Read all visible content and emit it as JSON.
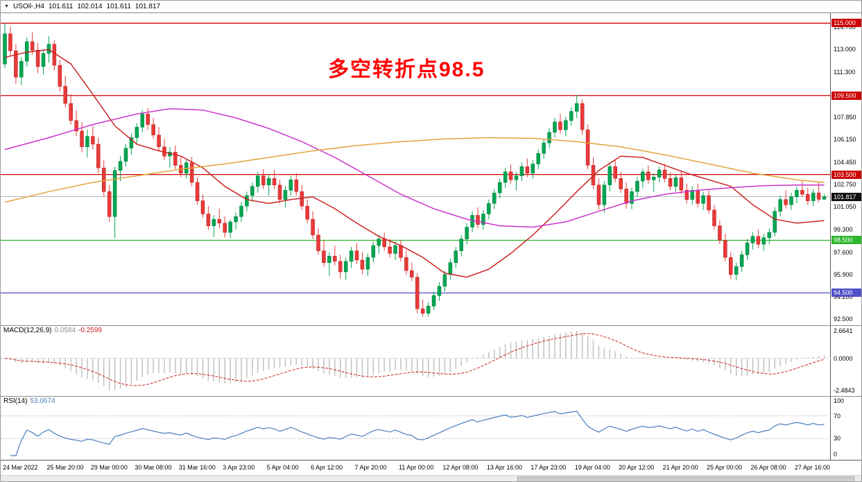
{
  "title_bar": {
    "dropdown_icon": "▼",
    "symbol_period": "USOil-,H4",
    "open": "101.611",
    "high": "102.014",
    "low": "101.611",
    "close": "101.817"
  },
  "annotation": {
    "text": "多空转折点98.5",
    "color": "#ff0000"
  },
  "colors": {
    "bull": "#00a651",
    "bear": "#e83a3a",
    "bull_border": "#007a3b",
    "bear_border": "#b71c1c",
    "macd_hist": "#bdbdbd",
    "macd_signal": "#cc2222",
    "rsi": "#4a7ebb",
    "grid": "#c8c8c8",
    "current_line": "#b9b9b9",
    "current_badge_bg": "#111111",
    "level_line": "#c0c0c0"
  },
  "chart_data": {
    "type": "candlestick",
    "symbol": "USOil-",
    "timeframe": "H4",
    "ylim": [
      92.2,
      115.55
    ],
    "current_price": 101.817,
    "y_ticks": [
      114.7,
      113.0,
      111.3,
      109.6,
      107.85,
      106.15,
      104.45,
      102.75,
      101.05,
      99.3,
      97.6,
      95.9,
      94.2,
      92.5
    ],
    "hlines": [
      {
        "price": 115.0,
        "color": "#cc0000"
      },
      {
        "price": 109.5,
        "color": "#cc0000"
      },
      {
        "price": 103.5,
        "color": "#cc0000"
      },
      {
        "price": 98.5,
        "color": "#2db52d"
      },
      {
        "price": 94.5,
        "color": "#5050c8"
      }
    ],
    "label_every": 8,
    "x_labels": [
      "24 Mar 2022",
      "25 Mar 20:00",
      "29 Mar 00:00",
      "30 Mar 08:00",
      "31 Mar 16:00",
      "3 Apr 23:00",
      "5 Apr 04:00",
      "6 Apr 12:00",
      "7 Apr 20:00",
      "11 Apr 00:00",
      "12 Apr 08:00",
      "13 Apr 16:00",
      "17 Apr 23:00",
      "19 Apr 04:00",
      "20 Apr 12:00",
      "21 Apr 20:00",
      "25 Apr 00:00",
      "26 Apr 08:00",
      "27 Apr 16:00"
    ],
    "candles": [
      [
        111.9,
        115.0,
        111.6,
        114.2
      ],
      [
        114.2,
        114.75,
        112.5,
        112.9
      ],
      [
        112.9,
        113.4,
        110.4,
        110.9
      ],
      [
        110.9,
        112.4,
        110.3,
        112.1
      ],
      [
        112.1,
        113.9,
        111.7,
        113.6
      ],
      [
        113.6,
        114.3,
        112.6,
        112.95
      ],
      [
        112.95,
        113.5,
        111.2,
        111.7
      ],
      [
        111.7,
        113.0,
        111.1,
        112.7
      ],
      [
        112.7,
        114.0,
        112.0,
        113.4
      ],
      [
        113.4,
        113.7,
        111.4,
        111.8
      ],
      [
        111.8,
        112.2,
        109.8,
        110.2
      ],
      [
        110.2,
        111.0,
        108.6,
        108.9
      ],
      [
        108.9,
        109.6,
        107.3,
        107.6
      ],
      [
        107.6,
        108.4,
        106.4,
        106.8
      ],
      [
        106.8,
        107.5,
        105.2,
        105.6
      ],
      [
        105.6,
        106.9,
        104.8,
        106.4
      ],
      [
        106.4,
        107.2,
        105.4,
        105.8
      ],
      [
        105.8,
        106.3,
        103.6,
        104.0
      ],
      [
        104.0,
        104.6,
        101.8,
        102.2
      ],
      [
        102.2,
        102.7,
        99.9,
        100.3
      ],
      [
        100.3,
        104.1,
        98.65,
        103.8
      ],
      [
        103.8,
        104.9,
        103.0,
        104.5
      ],
      [
        104.5,
        105.8,
        104.1,
        105.5
      ],
      [
        105.5,
        106.6,
        105.0,
        106.3
      ],
      [
        106.3,
        107.4,
        105.8,
        107.1
      ],
      [
        107.1,
        108.4,
        106.7,
        108.1
      ],
      [
        108.1,
        108.55,
        106.9,
        107.3
      ],
      [
        107.3,
        107.8,
        106.2,
        106.5
      ],
      [
        106.5,
        107.1,
        105.3,
        105.6
      ],
      [
        105.6,
        106.2,
        104.6,
        104.9
      ],
      [
        104.9,
        105.6,
        104.0,
        105.2
      ],
      [
        105.2,
        105.7,
        103.9,
        104.2
      ],
      [
        104.2,
        104.8,
        103.3,
        103.6
      ],
      [
        103.6,
        104.7,
        103.2,
        104.4
      ],
      [
        104.4,
        104.85,
        102.6,
        102.9
      ],
      [
        102.9,
        103.3,
        101.2,
        101.5
      ],
      [
        101.5,
        102.0,
        100.2,
        100.5
      ],
      [
        100.5,
        101.1,
        99.3,
        99.6
      ],
      [
        99.6,
        100.4,
        98.75,
        100.1
      ],
      [
        100.1,
        100.9,
        99.4,
        99.8
      ],
      [
        99.8,
        100.3,
        98.7,
        99.1
      ],
      [
        99.1,
        100.1,
        98.65,
        99.9
      ],
      [
        99.9,
        100.6,
        99.3,
        100.3
      ],
      [
        100.3,
        101.4,
        99.9,
        101.1
      ],
      [
        101.1,
        102.2,
        100.7,
        101.9
      ],
      [
        101.9,
        102.9,
        101.4,
        102.6
      ],
      [
        102.6,
        103.7,
        102.1,
        103.4
      ],
      [
        103.4,
        103.9,
        102.4,
        102.7
      ],
      [
        102.7,
        103.5,
        101.9,
        103.2
      ],
      [
        103.2,
        103.85,
        102.4,
        102.7
      ],
      [
        102.7,
        103.1,
        101.3,
        101.6
      ],
      [
        101.6,
        102.6,
        101.0,
        102.3
      ],
      [
        102.3,
        103.4,
        101.9,
        103.1
      ],
      [
        103.1,
        103.6,
        101.9,
        102.2
      ],
      [
        102.2,
        102.7,
        100.8,
        101.1
      ],
      [
        101.1,
        101.6,
        99.8,
        100.1
      ],
      [
        100.1,
        100.7,
        98.6,
        98.9
      ],
      [
        98.9,
        99.4,
        97.4,
        97.7
      ],
      [
        97.7,
        98.5,
        96.5,
        96.8
      ],
      [
        96.8,
        97.6,
        95.8,
        97.3
      ],
      [
        97.3,
        98.1,
        96.6,
        96.9
      ],
      [
        96.9,
        97.4,
        95.6,
        96.1
      ],
      [
        96.1,
        97.2,
        95.5,
        96.9
      ],
      [
        96.9,
        98.0,
        96.4,
        97.7
      ],
      [
        97.7,
        98.3,
        96.7,
        97.0
      ],
      [
        97.0,
        97.6,
        95.9,
        96.3
      ],
      [
        96.3,
        97.5,
        95.8,
        97.2
      ],
      [
        97.2,
        98.4,
        96.8,
        98.1
      ],
      [
        98.1,
        98.9,
        97.5,
        98.6
      ],
      [
        98.6,
        99.1,
        97.7,
        98.0
      ],
      [
        98.0,
        98.6,
        97.2,
        97.5
      ],
      [
        97.5,
        98.4,
        97.0,
        98.1
      ],
      [
        98.1,
        98.5,
        96.9,
        97.2
      ],
      [
        97.2,
        97.7,
        95.9,
        96.2
      ],
      [
        96.2,
        96.8,
        95.4,
        95.7
      ],
      [
        95.7,
        96.0,
        92.95,
        93.3
      ],
      [
        93.3,
        94.0,
        92.7,
        92.95
      ],
      [
        92.95,
        93.8,
        92.7,
        93.5
      ],
      [
        93.5,
        94.6,
        93.2,
        94.3
      ],
      [
        94.3,
        95.3,
        93.9,
        95.0
      ],
      [
        95.0,
        96.2,
        94.6,
        95.9
      ],
      [
        95.9,
        97.1,
        95.5,
        96.8
      ],
      [
        96.8,
        98.0,
        96.4,
        97.7
      ],
      [
        97.7,
        98.9,
        97.3,
        98.6
      ],
      [
        98.6,
        99.8,
        98.2,
        99.5
      ],
      [
        99.5,
        100.7,
        99.1,
        100.4
      ],
      [
        100.4,
        101.0,
        99.4,
        99.7
      ],
      [
        99.7,
        100.8,
        99.3,
        100.5
      ],
      [
        100.5,
        101.6,
        100.1,
        101.3
      ],
      [
        101.3,
        102.4,
        100.9,
        102.1
      ],
      [
        102.1,
        103.2,
        101.7,
        102.9
      ],
      [
        102.9,
        104.0,
        102.5,
        103.7
      ],
      [
        103.7,
        104.25,
        102.8,
        103.1
      ],
      [
        103.1,
        103.7,
        102.3,
        103.4
      ],
      [
        103.4,
        104.4,
        103.0,
        104.1
      ],
      [
        104.1,
        104.7,
        103.3,
        103.6
      ],
      [
        103.6,
        104.6,
        103.2,
        104.3
      ],
      [
        104.3,
        105.4,
        103.9,
        105.1
      ],
      [
        105.1,
        106.2,
        104.7,
        105.9
      ],
      [
        105.9,
        107.0,
        105.5,
        106.7
      ],
      [
        106.7,
        107.8,
        106.3,
        107.5
      ],
      [
        107.5,
        108.1,
        106.6,
        106.9
      ],
      [
        106.9,
        107.9,
        106.4,
        107.6
      ],
      [
        107.6,
        108.6,
        107.2,
        108.3
      ],
      [
        108.3,
        109.55,
        107.8,
        108.9
      ],
      [
        108.9,
        109.2,
        106.5,
        106.9
      ],
      [
        106.9,
        107.3,
        103.9,
        104.2
      ],
      [
        104.2,
        104.8,
        102.4,
        102.7
      ],
      [
        102.7,
        103.2,
        100.8,
        101.2
      ],
      [
        101.2,
        103.0,
        100.6,
        102.7
      ],
      [
        102.7,
        104.4,
        102.2,
        104.1
      ],
      [
        104.1,
        104.6,
        102.9,
        103.2
      ],
      [
        103.2,
        103.7,
        102.1,
        102.4
      ],
      [
        102.4,
        102.9,
        100.9,
        101.3
      ],
      [
        101.3,
        102.5,
        100.85,
        102.2
      ],
      [
        102.2,
        103.3,
        101.8,
        103.0
      ],
      [
        103.0,
        103.95,
        102.5,
        103.7
      ],
      [
        103.7,
        104.2,
        102.8,
        103.1
      ],
      [
        103.1,
        103.6,
        102.2,
        103.3
      ],
      [
        103.3,
        104.1,
        102.9,
        103.85
      ],
      [
        103.85,
        104.3,
        102.9,
        103.2
      ],
      [
        103.2,
        103.7,
        102.3,
        102.6
      ],
      [
        102.6,
        103.5,
        102.2,
        103.25
      ],
      [
        103.25,
        103.8,
        102.0,
        102.3
      ],
      [
        102.3,
        102.8,
        101.3,
        101.6
      ],
      [
        101.6,
        102.6,
        101.2,
        102.3
      ],
      [
        102.3,
        102.8,
        101.0,
        101.3
      ],
      [
        101.3,
        102.2,
        100.8,
        101.9
      ],
      [
        101.9,
        102.3,
        100.5,
        100.8
      ],
      [
        100.8,
        101.2,
        99.3,
        99.6
      ],
      [
        99.6,
        100.0,
        98.2,
        98.5
      ],
      [
        98.5,
        99.0,
        96.9,
        97.2
      ],
      [
        97.2,
        97.6,
        95.55,
        95.9
      ],
      [
        95.9,
        96.8,
        95.45,
        96.5
      ],
      [
        96.5,
        97.7,
        96.1,
        97.4
      ],
      [
        97.4,
        98.6,
        97.0,
        98.3
      ],
      [
        98.3,
        99.1,
        97.8,
        98.8
      ],
      [
        98.8,
        99.3,
        97.9,
        98.2
      ],
      [
        98.2,
        99.0,
        97.7,
        98.7
      ],
      [
        98.7,
        99.4,
        98.2,
        99.1
      ],
      [
        99.1,
        101.0,
        98.8,
        100.7
      ],
      [
        100.7,
        101.9,
        100.3,
        101.6
      ],
      [
        101.6,
        102.3,
        100.9,
        101.2
      ],
      [
        101.2,
        102.1,
        100.8,
        101.8
      ],
      [
        101.8,
        102.6,
        101.3,
        102.3
      ],
      [
        102.3,
        103.0,
        101.8,
        102.0
      ],
      [
        102.0,
        102.5,
        101.2,
        101.5
      ],
      [
        101.5,
        102.4,
        101.1,
        102.1
      ],
      [
        102.1,
        102.9,
        101.4,
        101.611
      ],
      [
        101.611,
        102.014,
        101.611,
        101.817
      ]
    ],
    "moving_averages": [
      {
        "name": "ma-fast-red",
        "color": "#cc2222",
        "points": [
          [
            0,
            112.4
          ],
          [
            4,
            112.8
          ],
          [
            8,
            113.0
          ],
          [
            12,
            111.9
          ],
          [
            16,
            109.6
          ],
          [
            20,
            107.2
          ],
          [
            24,
            105.8
          ],
          [
            28,
            105.3
          ],
          [
            32,
            104.9
          ],
          [
            36,
            104.0
          ],
          [
            40,
            102.6
          ],
          [
            44,
            101.6
          ],
          [
            48,
            101.3
          ],
          [
            52,
            101.6
          ],
          [
            56,
            101.8
          ],
          [
            60,
            100.9
          ],
          [
            64,
            99.8
          ],
          [
            68,
            98.8
          ],
          [
            72,
            98.1
          ],
          [
            76,
            97.2
          ],
          [
            80,
            96.0
          ],
          [
            84,
            95.7
          ],
          [
            88,
            96.3
          ],
          [
            92,
            97.5
          ],
          [
            96,
            98.9
          ],
          [
            100,
            100.5
          ],
          [
            104,
            102.2
          ],
          [
            108,
            103.8
          ],
          [
            112,
            104.9
          ],
          [
            116,
            104.8
          ],
          [
            120,
            104.2
          ],
          [
            124,
            103.6
          ],
          [
            128,
            103.1
          ],
          [
            132,
            102.6
          ],
          [
            136,
            101.2
          ],
          [
            140,
            100.1
          ],
          [
            144,
            99.8
          ],
          [
            149,
            100.0
          ]
        ]
      },
      {
        "name": "ma-mid-magenta",
        "color": "#cc33cc",
        "points": [
          [
            0,
            105.4
          ],
          [
            8,
            106.3
          ],
          [
            16,
            107.3
          ],
          [
            24,
            108.1
          ],
          [
            30,
            108.5
          ],
          [
            36,
            108.4
          ],
          [
            42,
            107.8
          ],
          [
            48,
            107.0
          ],
          [
            54,
            106.0
          ],
          [
            60,
            104.8
          ],
          [
            66,
            103.4
          ],
          [
            72,
            102.0
          ],
          [
            78,
            100.9
          ],
          [
            84,
            100.1
          ],
          [
            90,
            99.6
          ],
          [
            96,
            99.5
          ],
          [
            102,
            99.9
          ],
          [
            108,
            100.7
          ],
          [
            114,
            101.5
          ],
          [
            120,
            102.0
          ],
          [
            126,
            102.3
          ],
          [
            132,
            102.5
          ],
          [
            138,
            102.65
          ],
          [
            144,
            102.7
          ],
          [
            149,
            102.7
          ]
        ]
      },
      {
        "name": "ma-slow-orange",
        "color": "#e6a23c",
        "points": [
          [
            0,
            101.4
          ],
          [
            8,
            102.2
          ],
          [
            16,
            102.9
          ],
          [
            24,
            103.4
          ],
          [
            32,
            103.9
          ],
          [
            40,
            104.3
          ],
          [
            48,
            104.8
          ],
          [
            56,
            105.3
          ],
          [
            64,
            105.7
          ],
          [
            72,
            106.0
          ],
          [
            80,
            106.2
          ],
          [
            88,
            106.3
          ],
          [
            96,
            106.25
          ],
          [
            104,
            106.0
          ],
          [
            112,
            105.6
          ],
          [
            120,
            105.0
          ],
          [
            128,
            104.3
          ],
          [
            136,
            103.6
          ],
          [
            144,
            103.1
          ],
          [
            149,
            102.9
          ]
        ]
      }
    ]
  },
  "macd_panel": {
    "label": "MACD(12,26,9)",
    "main_value": "0.0584",
    "signal_value": "-0.2599",
    "axis_labels": [
      "2.6641",
      "0.0000",
      "-2.4843"
    ],
    "params": {
      "fast": 12,
      "slow": 26,
      "signal": 9
    }
  },
  "rsi_panel": {
    "label": "RSI(14)",
    "value": "53.0674",
    "axis_labels": [
      "100",
      "70",
      "30",
      "0"
    ],
    "levels": [
      70,
      30
    ],
    "period": 14
  }
}
